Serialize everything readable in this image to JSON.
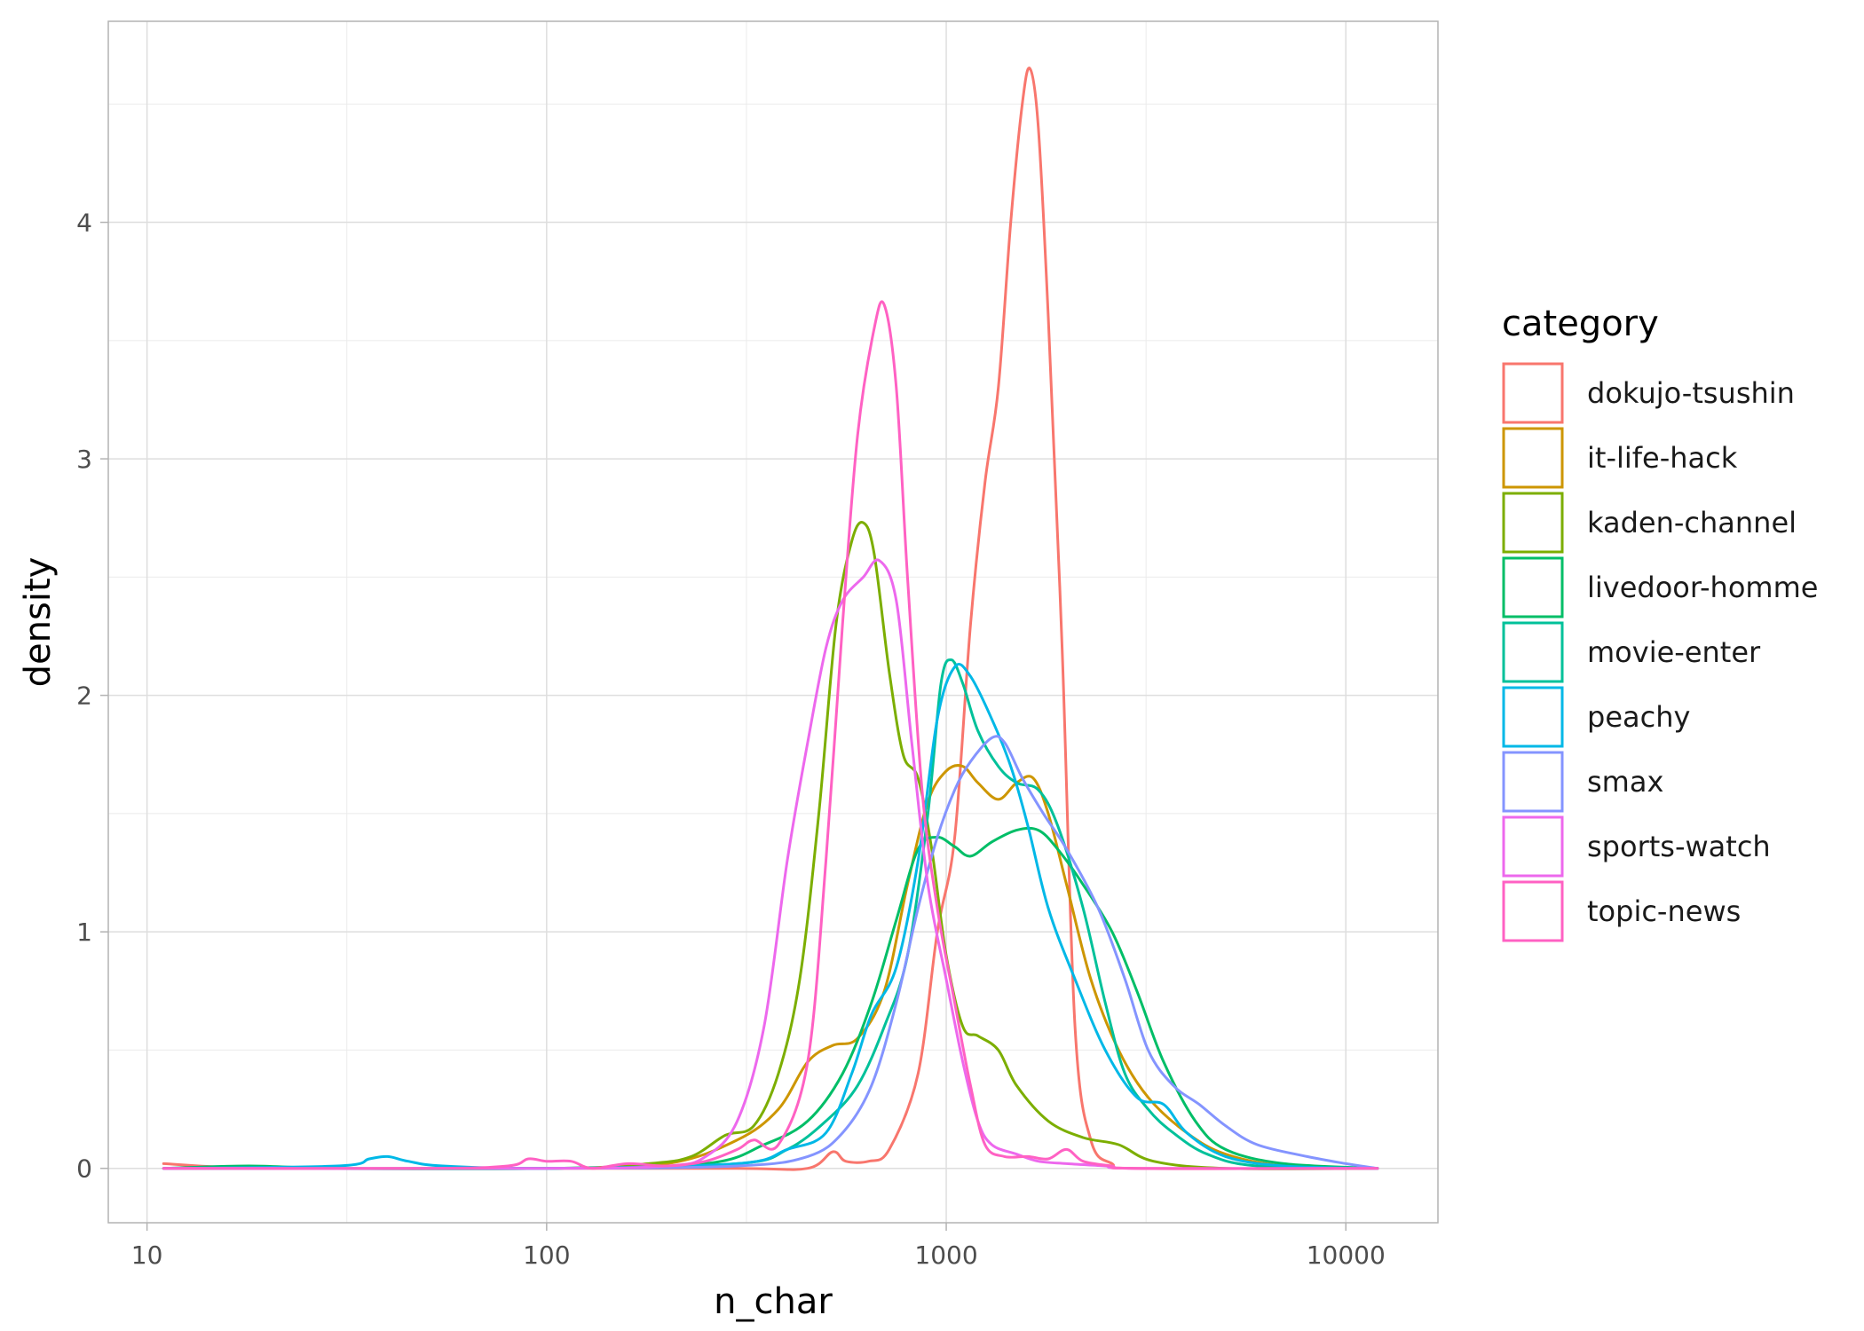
{
  "chart_data": {
    "type": "line",
    "xlabel": "n_char",
    "ylabel": "density",
    "x_scale": "log10",
    "xlim": [
      8,
      17000
    ],
    "ylim": [
      -0.23,
      4.85
    ],
    "x_ticks": [
      {
        "value": 10,
        "label": "10"
      },
      {
        "value": 100,
        "label": "100"
      },
      {
        "value": 1000,
        "label": "1000"
      },
      {
        "value": 10000,
        "label": "10000"
      }
    ],
    "y_ticks": [
      {
        "value": 0,
        "label": "0"
      },
      {
        "value": 1,
        "label": "1"
      },
      {
        "value": 2,
        "label": "2"
      },
      {
        "value": 3,
        "label": "3"
      },
      {
        "value": 4,
        "label": "4"
      }
    ],
    "grid": true,
    "legend": {
      "title": "category",
      "position": "right"
    },
    "series": [
      {
        "name": "dokujo-tsushin",
        "color": "#F8766D",
        "points": [
          [
            11,
            0.02
          ],
          [
            20,
            0
          ],
          [
            100,
            0
          ],
          [
            300,
            0
          ],
          [
            450,
            0
          ],
          [
            520,
            0.07
          ],
          [
            560,
            0.03
          ],
          [
            640,
            0.03
          ],
          [
            720,
            0.08
          ],
          [
            850,
            0.4
          ],
          [
            950,
            1.0
          ],
          [
            1050,
            1.4
          ],
          [
            1150,
            2.3
          ],
          [
            1250,
            2.9
          ],
          [
            1350,
            3.3
          ],
          [
            1450,
            4.0
          ],
          [
            1550,
            4.5
          ],
          [
            1620,
            4.65
          ],
          [
            1700,
            4.4
          ],
          [
            1800,
            3.6
          ],
          [
            1950,
            2.2
          ],
          [
            2100,
            0.6
          ],
          [
            2300,
            0.12
          ],
          [
            2600,
            0.02
          ],
          [
            3000,
            0
          ],
          [
            12000,
            0
          ]
        ]
      },
      {
        "name": "it-life-hack",
        "color": "#CD9600",
        "points": [
          [
            11,
            0
          ],
          [
            100,
            0
          ],
          [
            200,
            0.02
          ],
          [
            300,
            0.12
          ],
          [
            380,
            0.25
          ],
          [
            450,
            0.45
          ],
          [
            520,
            0.52
          ],
          [
            600,
            0.55
          ],
          [
            700,
            0.75
          ],
          [
            800,
            1.2
          ],
          [
            900,
            1.55
          ],
          [
            1000,
            1.68
          ],
          [
            1100,
            1.7
          ],
          [
            1200,
            1.63
          ],
          [
            1350,
            1.56
          ],
          [
            1500,
            1.63
          ],
          [
            1650,
            1.65
          ],
          [
            1800,
            1.5
          ],
          [
            2000,
            1.2
          ],
          [
            2300,
            0.8
          ],
          [
            2700,
            0.5
          ],
          [
            3200,
            0.3
          ],
          [
            4000,
            0.15
          ],
          [
            5000,
            0.06
          ],
          [
            7000,
            0.01
          ],
          [
            12000,
            0
          ]
        ]
      },
      {
        "name": "kaden-channel",
        "color": "#7CAE00",
        "points": [
          [
            11,
            0
          ],
          [
            100,
            0
          ],
          [
            180,
            0.02
          ],
          [
            230,
            0.05
          ],
          [
            280,
            0.14
          ],
          [
            330,
            0.18
          ],
          [
            380,
            0.4
          ],
          [
            430,
            0.8
          ],
          [
            480,
            1.5
          ],
          [
            530,
            2.3
          ],
          [
            580,
            2.65
          ],
          [
            620,
            2.73
          ],
          [
            660,
            2.6
          ],
          [
            720,
            2.1
          ],
          [
            780,
            1.75
          ],
          [
            850,
            1.65
          ],
          [
            920,
            1.35
          ],
          [
            1000,
            0.9
          ],
          [
            1100,
            0.6
          ],
          [
            1200,
            0.56
          ],
          [
            1350,
            0.5
          ],
          [
            1500,
            0.35
          ],
          [
            1800,
            0.2
          ],
          [
            2200,
            0.13
          ],
          [
            2700,
            0.1
          ],
          [
            3300,
            0.03
          ],
          [
            5000,
            0
          ],
          [
            12000,
            0
          ]
        ]
      },
      {
        "name": "livedoor-homme",
        "color": "#00BE67",
        "points": [
          [
            11,
            0
          ],
          [
            18,
            0.01
          ],
          [
            30,
            0
          ],
          [
            100,
            0
          ],
          [
            250,
            0.02
          ],
          [
            350,
            0.1
          ],
          [
            450,
            0.2
          ],
          [
            550,
            0.4
          ],
          [
            650,
            0.7
          ],
          [
            750,
            1.05
          ],
          [
            850,
            1.35
          ],
          [
            950,
            1.4
          ],
          [
            1050,
            1.36
          ],
          [
            1150,
            1.32
          ],
          [
            1300,
            1.38
          ],
          [
            1500,
            1.43
          ],
          [
            1700,
            1.43
          ],
          [
            1900,
            1.35
          ],
          [
            2200,
            1.2
          ],
          [
            2600,
            1.0
          ],
          [
            3000,
            0.75
          ],
          [
            3500,
            0.45
          ],
          [
            4200,
            0.2
          ],
          [
            5000,
            0.08
          ],
          [
            7000,
            0.02
          ],
          [
            12000,
            0
          ]
        ]
      },
      {
        "name": "movie-enter",
        "color": "#00C19A",
        "points": [
          [
            11,
            0
          ],
          [
            100,
            0
          ],
          [
            300,
            0.02
          ],
          [
            400,
            0.08
          ],
          [
            500,
            0.2
          ],
          [
            600,
            0.35
          ],
          [
            700,
            0.6
          ],
          [
            800,
            0.9
          ],
          [
            900,
            1.5
          ],
          [
            970,
            2.05
          ],
          [
            1030,
            2.15
          ],
          [
            1100,
            2.05
          ],
          [
            1200,
            1.85
          ],
          [
            1350,
            1.7
          ],
          [
            1500,
            1.63
          ],
          [
            1700,
            1.6
          ],
          [
            1900,
            1.45
          ],
          [
            2200,
            1.1
          ],
          [
            2500,
            0.7
          ],
          [
            2800,
            0.4
          ],
          [
            3200,
            0.25
          ],
          [
            3700,
            0.15
          ],
          [
            4500,
            0.06
          ],
          [
            6000,
            0.01
          ],
          [
            12000,
            0
          ]
        ]
      },
      {
        "name": "peachy",
        "color": "#00B8E7",
        "points": [
          [
            11,
            0
          ],
          [
            30,
            0.01
          ],
          [
            36,
            0.04
          ],
          [
            40,
            0.05
          ],
          [
            45,
            0.03
          ],
          [
            55,
            0.01
          ],
          [
            100,
            0
          ],
          [
            300,
            0.02
          ],
          [
            400,
            0.08
          ],
          [
            500,
            0.15
          ],
          [
            580,
            0.4
          ],
          [
            650,
            0.65
          ],
          [
            750,
            0.85
          ],
          [
            850,
            1.3
          ],
          [
            950,
            1.9
          ],
          [
            1050,
            2.12
          ],
          [
            1150,
            2.08
          ],
          [
            1300,
            1.9
          ],
          [
            1450,
            1.7
          ],
          [
            1600,
            1.45
          ],
          [
            1800,
            1.1
          ],
          [
            2100,
            0.8
          ],
          [
            2500,
            0.5
          ],
          [
            3000,
            0.3
          ],
          [
            3500,
            0.27
          ],
          [
            4000,
            0.15
          ],
          [
            5000,
            0.05
          ],
          [
            7000,
            0.01
          ],
          [
            12000,
            0
          ]
        ]
      },
      {
        "name": "smax",
        "color": "#8494FF",
        "points": [
          [
            11,
            0
          ],
          [
            100,
            0
          ],
          [
            300,
            0.01
          ],
          [
            450,
            0.05
          ],
          [
            550,
            0.15
          ],
          [
            650,
            0.35
          ],
          [
            750,
            0.7
          ],
          [
            850,
            1.1
          ],
          [
            950,
            1.4
          ],
          [
            1050,
            1.6
          ],
          [
            1150,
            1.72
          ],
          [
            1300,
            1.82
          ],
          [
            1400,
            1.8
          ],
          [
            1550,
            1.65
          ],
          [
            1750,
            1.5
          ],
          [
            2000,
            1.35
          ],
          [
            2400,
            1.1
          ],
          [
            2800,
            0.8
          ],
          [
            3200,
            0.5
          ],
          [
            3700,
            0.35
          ],
          [
            4300,
            0.27
          ],
          [
            5000,
            0.18
          ],
          [
            6000,
            0.1
          ],
          [
            8000,
            0.05
          ],
          [
            10000,
            0.02
          ],
          [
            12000,
            0
          ]
        ]
      },
      {
        "name": "sports-watch",
        "color": "#ED68ED",
        "points": [
          [
            11,
            0
          ],
          [
            100,
            0
          ],
          [
            200,
            0.01
          ],
          [
            250,
            0.05
          ],
          [
            300,
            0.2
          ],
          [
            350,
            0.6
          ],
          [
            400,
            1.3
          ],
          [
            450,
            1.8
          ],
          [
            500,
            2.2
          ],
          [
            550,
            2.4
          ],
          [
            620,
            2.5
          ],
          [
            680,
            2.57
          ],
          [
            750,
            2.4
          ],
          [
            820,
            1.8
          ],
          [
            900,
            1.2
          ],
          [
            1000,
            0.8
          ],
          [
            1100,
            0.45
          ],
          [
            1200,
            0.2
          ],
          [
            1300,
            0.1
          ],
          [
            1500,
            0.06
          ],
          [
            1700,
            0.03
          ],
          [
            2000,
            0.02
          ],
          [
            2500,
            0.01
          ],
          [
            3000,
            0
          ],
          [
            12000,
            0
          ]
        ]
      },
      {
        "name": "topic-news",
        "color": "#FF61C3",
        "points": [
          [
            11,
            0
          ],
          [
            50,
            0
          ],
          [
            80,
            0.01
          ],
          [
            90,
            0.04
          ],
          [
            100,
            0.03
          ],
          [
            115,
            0.03
          ],
          [
            130,
            0
          ],
          [
            160,
            0.02
          ],
          [
            200,
            0.01
          ],
          [
            250,
            0.03
          ],
          [
            300,
            0.08
          ],
          [
            330,
            0.12
          ],
          [
            380,
            0.1
          ],
          [
            450,
            0.45
          ],
          [
            500,
            1.3
          ],
          [
            550,
            2.3
          ],
          [
            600,
            3.1
          ],
          [
            660,
            3.55
          ],
          [
            700,
            3.65
          ],
          [
            750,
            3.3
          ],
          [
            800,
            2.5
          ],
          [
            870,
            1.6
          ],
          [
            950,
            1.1
          ],
          [
            1050,
            0.7
          ],
          [
            1150,
            0.35
          ],
          [
            1250,
            0.1
          ],
          [
            1400,
            0.05
          ],
          [
            1600,
            0.05
          ],
          [
            1800,
            0.04
          ],
          [
            2000,
            0.08
          ],
          [
            2200,
            0.03
          ],
          [
            2600,
            0.01
          ],
          [
            3000,
            0
          ],
          [
            12000,
            0
          ]
        ]
      }
    ]
  }
}
